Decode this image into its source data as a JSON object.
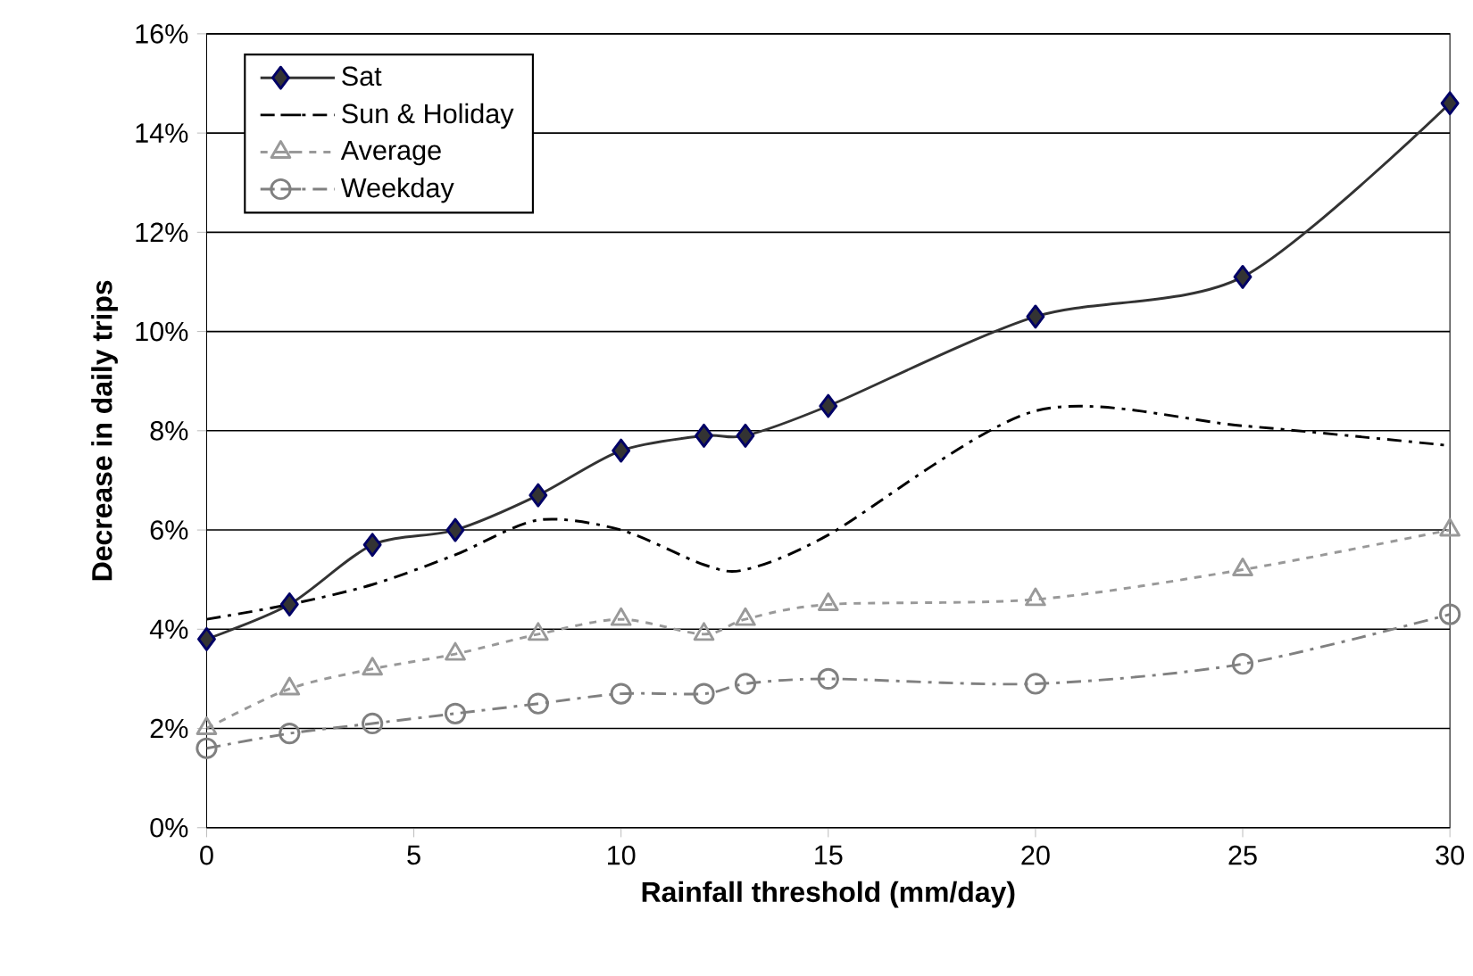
{
  "chart_data": {
    "type": "line",
    "xlabel": "Rainfall threshold (mm/day)",
    "ylabel": "Decrease in daily trips",
    "x": [
      0,
      2,
      4,
      6,
      8,
      10,
      12,
      13,
      15,
      20,
      25,
      30
    ],
    "series": [
      {
        "name": "Sat",
        "color": "#333333",
        "marker": "diamond",
        "line_style": "solid",
        "values": [
          3.8,
          4.5,
          5.7,
          6.0,
          6.7,
          7.6,
          7.9,
          7.9,
          8.5,
          10.3,
          11.1,
          14.6
        ]
      },
      {
        "name": "Sun & Holiday",
        "color": "#000000",
        "marker": "none",
        "line_style": "dashed",
        "values": [
          4.2,
          4.5,
          4.9,
          5.5,
          6.2,
          6.0,
          5.3,
          5.2,
          5.9,
          8.4,
          8.1,
          7.7
        ]
      },
      {
        "name": "Average",
        "color": "#999999",
        "marker": "triangle",
        "line_style": "dotted",
        "values": [
          2.0,
          2.8,
          3.2,
          3.5,
          3.9,
          4.2,
          3.9,
          4.2,
          4.5,
          4.6,
          5.2,
          6.0
        ]
      },
      {
        "name": "Weekday",
        "color": "#808080",
        "marker": "circle",
        "line_style": "dashed",
        "values": [
          1.6,
          1.9,
          2.1,
          2.3,
          2.5,
          2.7,
          2.7,
          2.9,
          3.0,
          2.9,
          3.3,
          4.3
        ]
      }
    ],
    "xlim": [
      0,
      30
    ],
    "xticks": [
      0,
      5,
      10,
      15,
      20,
      25,
      30
    ],
    "ylim": [
      0,
      16
    ],
    "yticks": [
      {
        "value": 0,
        "label": "0%"
      },
      {
        "value": 2,
        "label": "2%"
      },
      {
        "value": 4,
        "label": "4%"
      },
      {
        "value": 6,
        "label": "6%"
      },
      {
        "value": 8,
        "label": "8%"
      },
      {
        "value": 10,
        "label": "10%"
      },
      {
        "value": 12,
        "label": "12%"
      },
      {
        "value": 14,
        "label": "14%"
      },
      {
        "value": 16,
        "label": "16%"
      }
    ],
    "grid": "y",
    "legend": "top left"
  }
}
